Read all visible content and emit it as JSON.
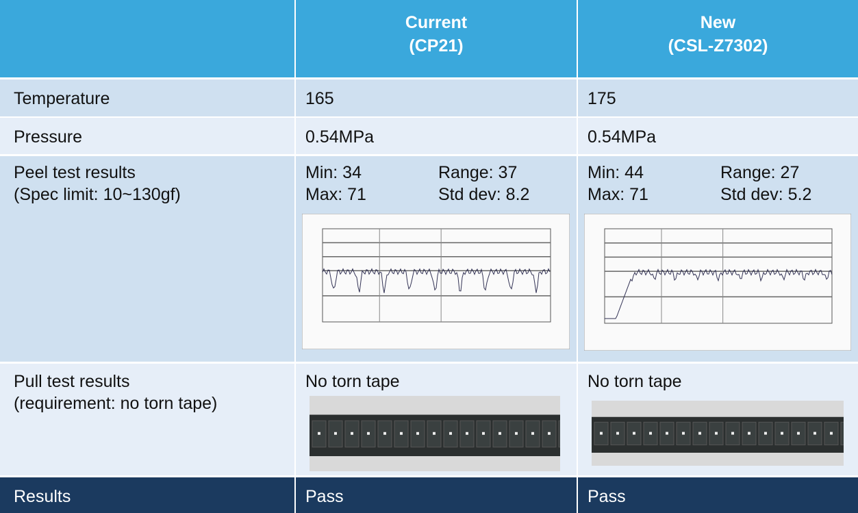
{
  "table": {
    "header": [
      {
        "name": "Current",
        "code": "(CP21)"
      },
      {
        "name": "New",
        "code": "(CSL-Z7302)"
      }
    ],
    "rows": [
      {
        "label": [
          "Temperature"
        ],
        "cells": [
          "165",
          "175"
        ]
      },
      {
        "label": [
          "Pressure"
        ],
        "cells": [
          "0.54MPa",
          "0.54MPa"
        ]
      },
      {
        "label": [
          "Peel test results",
          "(Spec limit: 10~130gf)"
        ],
        "cells": [
          [
            "Min: 34",
            "Range: 37",
            "Max: 71",
            "Std dev: 8.2"
          ],
          [
            "Min: 44",
            "Range: 27",
            "Max: 71",
            "Std dev: 5.2"
          ]
        ]
      },
      {
        "label": [
          "Pull test results",
          "(requirement: no torn tape)"
        ],
        "cells": [
          "No torn tape",
          "No torn tape"
        ]
      },
      {
        "label": [
          "Results"
        ],
        "cells": [
          "Pass",
          "Pass"
        ]
      }
    ]
  }
}
